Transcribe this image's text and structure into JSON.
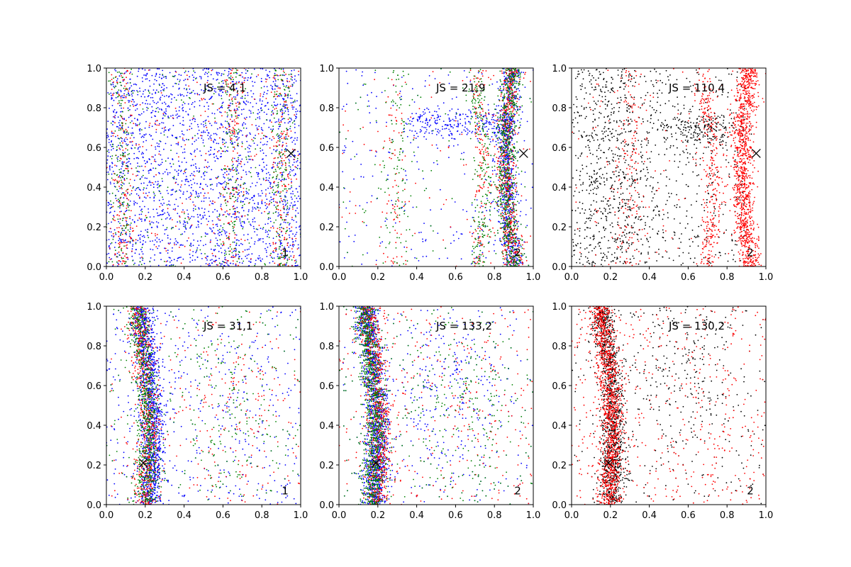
{
  "chart_data": [
    {
      "type": "scatter",
      "annotation": "JS = 4,1",
      "panel_label": "1",
      "xlim": [
        0,
        1
      ],
      "ylim": [
        0,
        1
      ],
      "xticks": [
        "0.0",
        "0.2",
        "0.4",
        "0.6",
        "0.8",
        "1.0"
      ],
      "yticks": [
        "0.0",
        "0.2",
        "0.4",
        "0.6",
        "0.8",
        "1.0"
      ],
      "marker": {
        "x": 0.95,
        "y": 0.57,
        "symbol": "x"
      },
      "series": [
        {
          "color": "#0000ff",
          "pattern": "uniform",
          "bands": [],
          "count": 2200
        },
        {
          "color": "#ff0000",
          "pattern": "columns",
          "bands": [
            {
              "x": 0.08,
              "y": 0.5
            },
            {
              "x": 0.65,
              "y": 0.5
            },
            {
              "x": 0.9,
              "y": 0.5
            }
          ],
          "count": 700
        },
        {
          "color": "#008000",
          "pattern": "columns",
          "bands": [
            {
              "x": 0.08,
              "y": 0.5
            },
            {
              "x": 0.65,
              "y": 0.5
            },
            {
              "x": 0.9,
              "y": 0.5
            }
          ],
          "count": 700
        }
      ]
    },
    {
      "type": "scatter",
      "annotation": "JS = 21,9",
      "panel_label": "2",
      "xlim": [
        0,
        1
      ],
      "ylim": [
        0,
        1
      ],
      "xticks": [
        "0.0",
        "0.2",
        "0.4",
        "0.6",
        "0.8",
        "1.0"
      ],
      "yticks": [
        "0.0",
        "0.2",
        "0.4",
        "0.6",
        "0.8",
        "1.0"
      ],
      "marker": {
        "x": 0.95,
        "y": 0.57,
        "symbol": "x"
      },
      "series": [
        {
          "color": "#0000ff",
          "pattern": "band-right",
          "bands": [
            {
              "x": 0.9,
              "y": 0.5
            },
            {
              "x": 0.72,
              "y": 0.72
            }
          ],
          "count": 1500
        },
        {
          "color": "#ff0000",
          "pattern": "band-right",
          "bands": [
            {
              "x": 0.9,
              "y": 0.5
            },
            {
              "x": 0.72,
              "y": 0.4
            },
            {
              "x": 0.3,
              "y": 0.4
            }
          ],
          "count": 900
        },
        {
          "color": "#008000",
          "pattern": "band-right",
          "bands": [
            {
              "x": 0.9,
              "y": 0.5
            },
            {
              "x": 0.72,
              "y": 0.4
            },
            {
              "x": 0.3,
              "y": 0.4
            }
          ],
          "count": 1100
        }
      ]
    },
    {
      "type": "scatter",
      "annotation": "JS = 110,4",
      "panel_label": "2",
      "xlim": [
        0,
        1
      ],
      "ylim": [
        0,
        1
      ],
      "xticks": [
        "0.0",
        "0.2",
        "0.4",
        "0.6",
        "0.8",
        "1.0"
      ],
      "yticks": [
        "0.0",
        "0.2",
        "0.4",
        "0.6",
        "0.8",
        "1.0"
      ],
      "marker": {
        "x": 0.95,
        "y": 0.57,
        "symbol": "x"
      },
      "series": [
        {
          "color": "#000000",
          "pattern": "spread-left",
          "bands": [
            {
              "x": 0.2,
              "y": 0.45
            },
            {
              "x": 0.65,
              "y": 0.7
            }
          ],
          "count": 1400
        },
        {
          "color": "#ff0000",
          "pattern": "band-right",
          "bands": [
            {
              "x": 0.92,
              "y": 0.5
            },
            {
              "x": 0.7,
              "y": 0.4
            },
            {
              "x": 0.3,
              "y": 0.4
            }
          ],
          "count": 1700
        }
      ]
    },
    {
      "type": "scatter",
      "annotation": "JS = 31,1",
      "panel_label": "1",
      "xlim": [
        0,
        1
      ],
      "ylim": [
        0,
        1
      ],
      "xticks": [
        "0.0",
        "0.2",
        "0.4",
        "0.6",
        "0.8",
        "1.0"
      ],
      "yticks": [
        "0.0",
        "0.2",
        "0.4",
        "0.6",
        "0.8",
        "1.0"
      ],
      "marker": {
        "x": 0.19,
        "y": 0.21,
        "symbol": "x"
      },
      "series": [
        {
          "color": "#0000ff",
          "pattern": "band-left",
          "bands": [
            {
              "x": 0.2,
              "y": 0.5
            }
          ],
          "count": 1800
        },
        {
          "color": "#ff0000",
          "pattern": "band-left",
          "bands": [
            {
              "x": 0.18,
              "y": 0.5
            },
            {
              "x": 0.6,
              "y": 0.5
            }
          ],
          "count": 900
        },
        {
          "color": "#008000",
          "pattern": "band-left",
          "bands": [
            {
              "x": 0.18,
              "y": 0.5
            },
            {
              "x": 0.6,
              "y": 0.5
            }
          ],
          "count": 1000
        }
      ]
    },
    {
      "type": "scatter",
      "annotation": "JS = 133,2",
      "panel_label": "2",
      "xlim": [
        0,
        1
      ],
      "ylim": [
        0,
        1
      ],
      "xticks": [
        "0.0",
        "0.2",
        "0.4",
        "0.6",
        "0.8",
        "1.0"
      ],
      "yticks": [
        "0.0",
        "0.2",
        "0.4",
        "0.6",
        "0.8",
        "1.0"
      ],
      "marker": {
        "x": 0.19,
        "y": 0.21,
        "symbol": "x"
      },
      "series": [
        {
          "color": "#0000ff",
          "pattern": "band-left",
          "bands": [
            {
              "x": 0.16,
              "y": 0.5
            },
            {
              "x": 0.55,
              "y": 0.6
            }
          ],
          "count": 2000
        },
        {
          "color": "#ff0000",
          "pattern": "band-left",
          "bands": [
            {
              "x": 0.17,
              "y": 0.5
            }
          ],
          "count": 1100
        },
        {
          "color": "#008000",
          "pattern": "band-left",
          "bands": [
            {
              "x": 0.15,
              "y": 0.5
            },
            {
              "x": 0.6,
              "y": 0.5
            }
          ],
          "count": 1300
        }
      ]
    },
    {
      "type": "scatter",
      "annotation": "JS = 130,2",
      "panel_label": "2",
      "xlim": [
        0,
        1
      ],
      "ylim": [
        0,
        1
      ],
      "xticks": [
        "0.0",
        "0.2",
        "0.4",
        "0.6",
        "0.8",
        "1.0"
      ],
      "yticks": [
        "0.0",
        "0.2",
        "0.4",
        "0.6",
        "0.8",
        "1.0"
      ],
      "marker": {
        "x": 0.19,
        "y": 0.21,
        "symbol": "x"
      },
      "series": [
        {
          "color": "#000000",
          "pattern": "band-left",
          "bands": [
            {
              "x": 0.18,
              "y": 0.5
            },
            {
              "x": 0.55,
              "y": 0.7
            }
          ],
          "count": 1600
        },
        {
          "color": "#ff0000",
          "pattern": "band-left",
          "bands": [
            {
              "x": 0.17,
              "y": 0.5
            }
          ],
          "count": 1700
        }
      ]
    }
  ]
}
